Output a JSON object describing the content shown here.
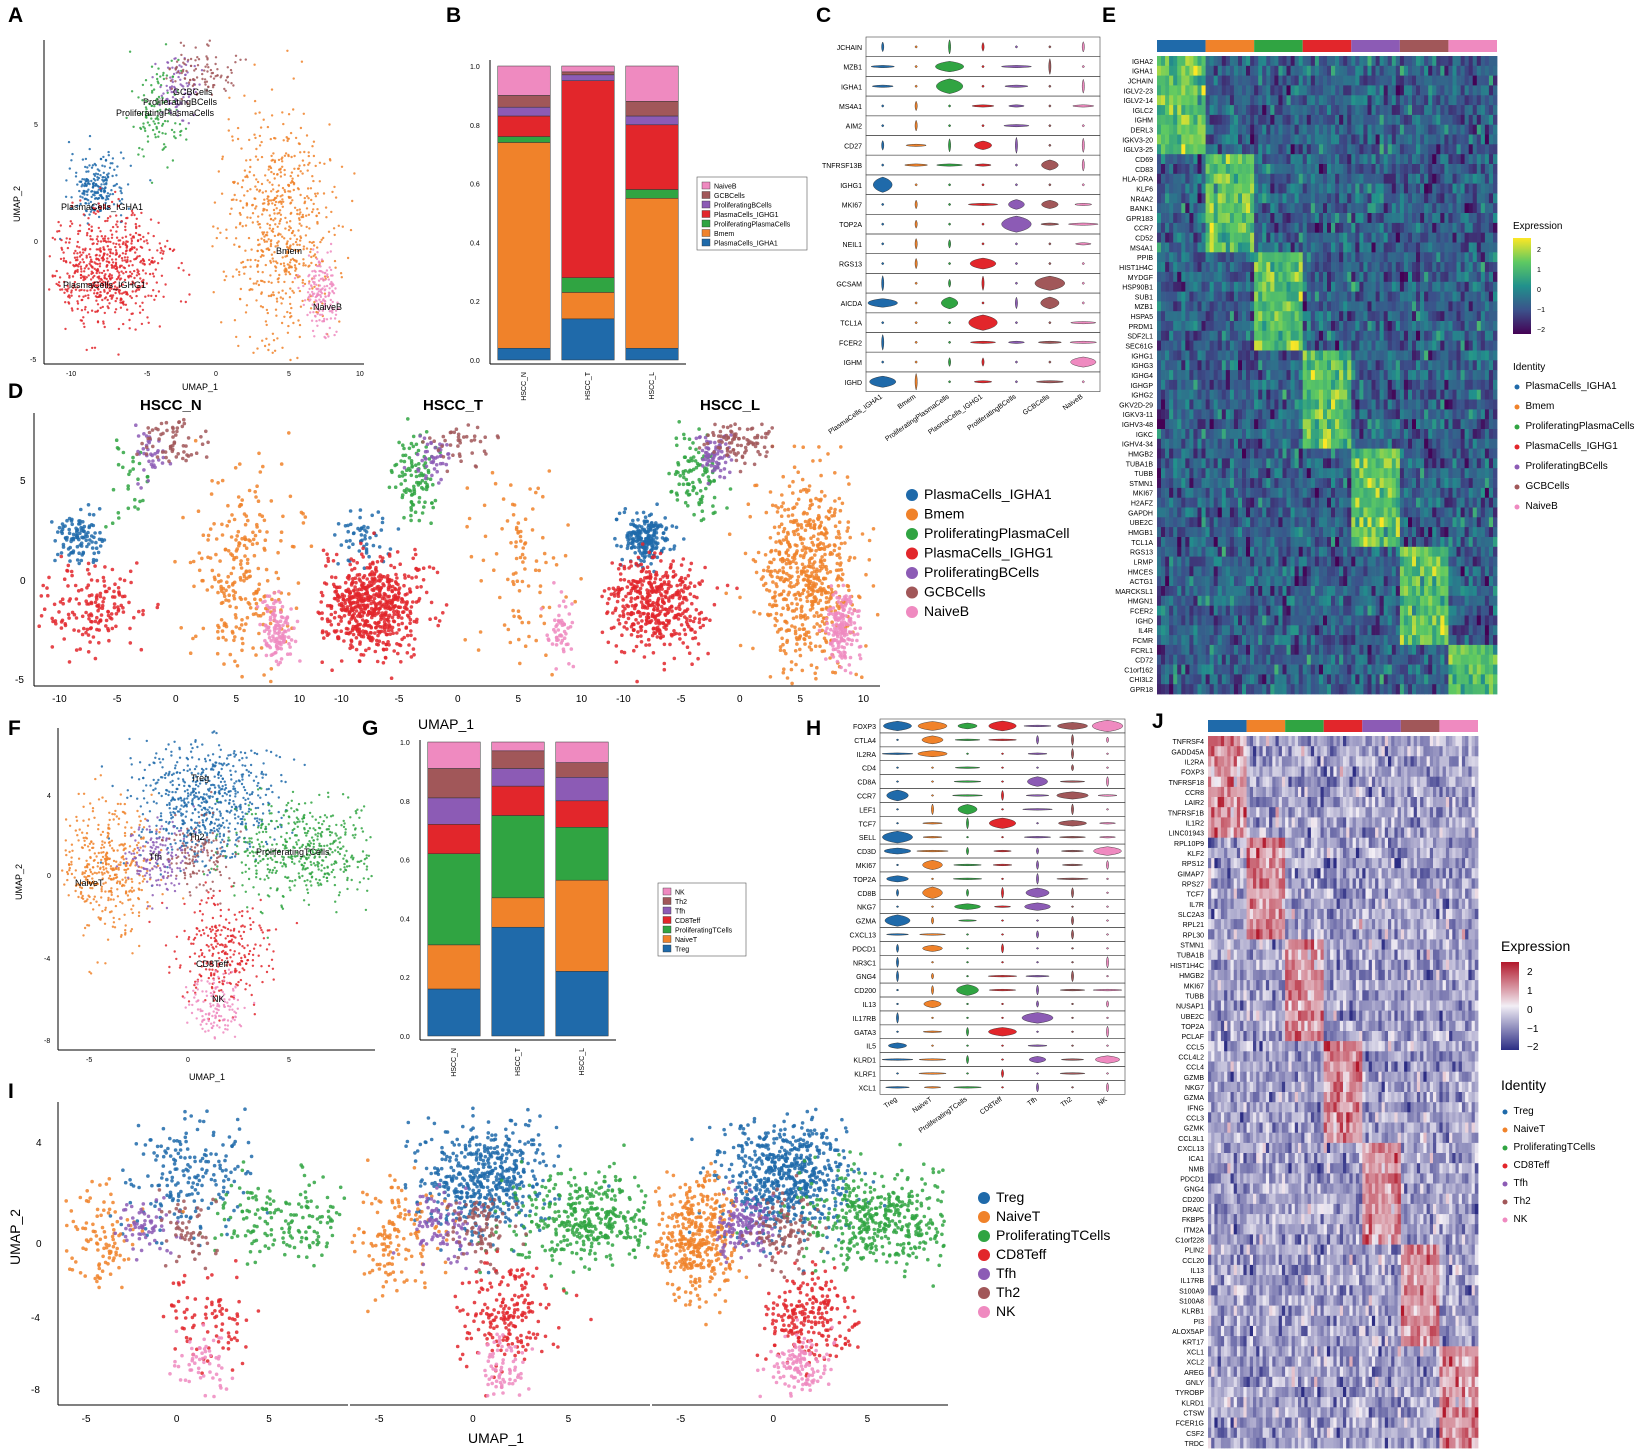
{
  "figure": {
    "labels": [
      "A",
      "B",
      "C",
      "D",
      "E",
      "F",
      "G",
      "H",
      "I",
      "J"
    ]
  },
  "colors": {
    "c1": "#1f6aaa",
    "c2": "#f0822a",
    "c3": "#30a442",
    "c4": "#e2262b",
    "c5": "#8c5bb5",
    "c6": "#a15759",
    "c7": "#ef8ac0"
  },
  "b_cells": {
    "clusters": [
      "PlasmaCells_IGHA1",
      "Bmem",
      "ProliferatingPlasmaCells",
      "PlasmaCells_IGHG1",
      "ProliferatingBCells",
      "GCBCells",
      "NaiveB"
    ],
    "umap_labels": [
      "GCBCells",
      "ProliferatingBCells",
      "ProliferatingPlasmaCells",
      "PlasmaCells_IGHA1",
      "PlasmaCells_IGHG1",
      "Bmem",
      "NaiveB"
    ],
    "umap_axes": {
      "xlabel": "UMAP_1",
      "ylabel": "UMAP_2",
      "xticks": [
        "-10",
        "-5",
        "0",
        "5",
        "10"
      ],
      "yticks": [
        "5",
        "0",
        "-5"
      ]
    },
    "legend_d": [
      "PlasmaCells_IGHA1",
      "Bmem",
      "ProliferatingPlasmaCell",
      "PlasmaCells_IGHG1",
      "ProliferatingBCells",
      "GCBCells",
      "NaiveB"
    ],
    "samples": [
      "HSCC_N",
      "HSCC_T",
      "HSCC_L"
    ],
    "legend_b": [
      "NaiveB",
      "GCBCells",
      "ProliferatingBCells",
      "PlasmaCells_IGHG1",
      "ProliferatingPlasmaCells",
      "Bmem",
      "PlasmaCells_IGHA1"
    ],
    "violin_genes": [
      "JCHAIN",
      "MZB1",
      "IGHA1",
      "MS4A1",
      "AIM2",
      "CD27",
      "TNFRSF13B",
      "IGHG1",
      "MKI67",
      "TOP2A",
      "NEIL1",
      "RGS13",
      "GCSAM",
      "AICDA",
      "TCL1A",
      "FCER2",
      "IGHM",
      "IGHD"
    ],
    "violin_xlabels": [
      "PlasmaCells_IGHA1",
      "Bmem",
      "ProliferatingPlasmaCells",
      "PlasmaCells_IGHG1",
      "ProliferatingBCells",
      "GCBCells",
      "NaiveB"
    ],
    "heatmap_genes": [
      "IGHA2",
      "IGHA1",
      "JCHAIN",
      "IGLV2-23",
      "IGLV2-14",
      "IGLC2",
      "IGHM",
      "DERL3",
      "IGKV3-20",
      "IGLV3-25",
      "CD69",
      "CD83",
      "HLA-DRA",
      "KLF6",
      "NR4A2",
      "BANK1",
      "GPR183",
      "CCR7",
      "CD52",
      "MS4A1",
      "PPIB",
      "HIST1H4C",
      "MYDGF",
      "HSP90B1",
      "SUB1",
      "MZB1",
      "HSPA5",
      "PRDM1",
      "SDF2L1",
      "SEC61G",
      "IGHG1",
      "IGHG3",
      "IGHG4",
      "IGHGP",
      "IGHG2",
      "GKV2D-29",
      "IGKV3-11",
      "IGHV3-48",
      "IGKC",
      "IGHV4-34",
      "HMGB2",
      "TUBA1B",
      "TUBB",
      "STMN1",
      "MKI67",
      "H2AFZ",
      "GAPDH",
      "UBE2C",
      "HMGB1",
      "TCL1A",
      "RGS13",
      "LRMP",
      "HMCES",
      "ACTG1",
      "MARCKSL1",
      "HMGN1",
      "FCER2",
      "IGHD",
      "IL4R",
      "FCMR",
      "FCRL1",
      "CD72",
      "C1orf162",
      "CHI3L2",
      "GPR18"
    ],
    "expr_title": "Expression",
    "expr_ticks": [
      "2",
      "1",
      "0",
      "−1",
      "−2"
    ],
    "identity_title": "Identity"
  },
  "t_cells": {
    "clusters": [
      "Treg",
      "NaiveT",
      "ProliferatingTCells",
      "CD8Teff",
      "Tfh",
      "Th2",
      "NK"
    ],
    "umap_labels": [
      "Treg",
      "Th2",
      "Tfh",
      "ProliferatingTCells",
      "NaiveT",
      "CD8Teff",
      "NK"
    ],
    "umap_axes": {
      "xlabel": "UMAP_1",
      "ylabel": "UMAP_2",
      "xticks": [
        "-5",
        "0",
        "5"
      ],
      "yticks": [
        "4",
        "0",
        "-4",
        "-8"
      ]
    },
    "legend_g": [
      "NK",
      "Th2",
      "Tfh",
      "CD8Teff",
      "ProliferatingTCells",
      "NaiveT",
      "Treg"
    ],
    "violin_genes": [
      "FOXP3",
      "CTLA4",
      "IL2RA",
      "CD4",
      "CD8A",
      "CCR7",
      "LEF1",
      "TCF7",
      "SELL",
      "CD3D",
      "MKI67",
      "TOP2A",
      "CD8B",
      "NKG7",
      "GZMA",
      "CXCL13",
      "PDCD1",
      "NR3C1",
      "GNG4",
      "CD200",
      "IL13",
      "IL17RB",
      "GATA3",
      "IL5",
      "KLRD1",
      "KLRF1",
      "XCL1"
    ],
    "violin_xlabels": [
      "Treg",
      "NaiveT",
      "ProliferatingTCells",
      "CD8Teff",
      "Tfh",
      "Th2",
      "NK"
    ],
    "heatmap_genes": [
      "TNFRSF4",
      "GADD45A",
      "IL2RA",
      "FOXP3",
      "TNFRSF18",
      "CCR8",
      "LAIR2",
      "TNFRSF1B",
      "IL1R2",
      "LINC01943",
      "RPL10P9",
      "KLF2",
      "RPS12",
      "GIMAP7",
      "RPS27",
      "TCF7",
      "IL7R",
      "SLC2A3",
      "RPL21",
      "RPL30",
      "STMN1",
      "TUBA1B",
      "HIST1H4C",
      "HMGB2",
      "MKI67",
      "TUBB",
      "NUSAP1",
      "UBE2C",
      "TOP2A",
      "PCLAF",
      "CCL5",
      "CCL4L2",
      "CCL4",
      "GZMB",
      "NKG7",
      "GZMA",
      "IFNG",
      "CCL3",
      "GZMK",
      "CCL3L1",
      "CXCL13",
      "ICA1",
      "NMB",
      "PDCD1",
      "GNG4",
      "CD200",
      "DRAIC",
      "FKBP5",
      "ITM2A",
      "C1orf228",
      "PLIN2",
      "CCL20",
      "IL13",
      "IL17RB",
      "S100A9",
      "S100A8",
      "KLRB1",
      "PI3",
      "ALOX5AP",
      "KRT17",
      "XCL1",
      "XCL2",
      "AREG",
      "GNLY",
      "TYROBP",
      "KLRD1",
      "CTSW",
      "FCER1G",
      "CSF2",
      "TRDC"
    ],
    "expr_title": "Expression",
    "expr_ticks": [
      "2",
      "1",
      "0",
      "−1",
      "−2"
    ],
    "identity_title": "Identity"
  },
  "chart_data": [
    {
      "panel": "A",
      "type": "scatter",
      "title": "",
      "xlabel": "UMAP_1",
      "ylabel": "UMAP_2",
      "xlim": [
        -12,
        11
      ],
      "ylim": [
        -5.2,
        7.5
      ],
      "clusters": [
        {
          "name": "PlasmaCells_IGHA1",
          "cx": -8.4,
          "cy": 1.7,
          "sx": 1.0,
          "sy": 0.6,
          "n": 220
        },
        {
          "name": "Bmem",
          "cx": 5.0,
          "cy": 0.0,
          "sx": 2.0,
          "sy": 2.3,
          "n": 650
        },
        {
          "name": "ProliferatingPlasmaCells",
          "cx": -4.0,
          "cy": 4.6,
          "sx": 1.0,
          "sy": 1.0,
          "n": 120
        },
        {
          "name": "PlasmaCells_IGHG1",
          "cx": -7.5,
          "cy": -1.5,
          "sx": 2.0,
          "sy": 1.1,
          "n": 650
        },
        {
          "name": "ProliferatingBCells",
          "cx": -2.5,
          "cy": 5.6,
          "sx": 0.7,
          "sy": 0.6,
          "n": 90
        },
        {
          "name": "GCBCells",
          "cx": -0.5,
          "cy": 6.2,
          "sx": 1.3,
          "sy": 0.5,
          "n": 100
        },
        {
          "name": "NaiveB",
          "cx": 8.0,
          "cy": -2.6,
          "sx": 0.6,
          "sy": 0.8,
          "n": 170
        }
      ]
    },
    {
      "panel": "B",
      "type": "bar",
      "stacked": true,
      "categories": [
        "HSCC_N",
        "HSCC_T",
        "HSCC_L"
      ],
      "ylim": [
        0,
        1
      ],
      "yticks": [
        "0.0",
        "0.2",
        "0.4",
        "0.6",
        "0.8",
        "1.0"
      ],
      "series": [
        {
          "name": "PlasmaCells_IGHA1",
          "values": [
            0.04,
            0.14,
            0.04
          ]
        },
        {
          "name": "Bmem",
          "values": [
            0.7,
            0.09,
            0.51
          ]
        },
        {
          "name": "ProliferatingPlasmaCells",
          "values": [
            0.02,
            0.05,
            0.03
          ]
        },
        {
          "name": "PlasmaCells_IGHG1",
          "values": [
            0.07,
            0.67,
            0.22
          ]
        },
        {
          "name": "ProliferatingBCells",
          "values": [
            0.03,
            0.02,
            0.03
          ]
        },
        {
          "name": "GCBCells",
          "values": [
            0.04,
            0.01,
            0.05
          ]
        },
        {
          "name": "NaiveB",
          "values": [
            0.1,
            0.02,
            0.12
          ]
        }
      ]
    },
    {
      "panel": "C",
      "type": "violin",
      "genes_ref": "b_cells.violin_genes",
      "groups_ref": "b_cells.violin_xlabels"
    },
    {
      "panel": "D",
      "type": "scatter",
      "title": "HSCC_N | HSCC_T | HSCC_L",
      "xlabel": "UMAP_1",
      "ylabel": "UMAP_2",
      "xticks": [
        "-10",
        "-5",
        "0",
        "5",
        "10"
      ],
      "yticks": [
        "5",
        "0",
        "-5"
      ]
    },
    {
      "panel": "E",
      "type": "heatmap",
      "genes_ref": "b_cells.heatmap_genes",
      "colorbar": [
        -2,
        2
      ]
    },
    {
      "panel": "F",
      "type": "scatter",
      "title": "",
      "xlabel": "UMAP_1",
      "ylabel": "UMAP_2",
      "xlim": [
        -6.5,
        9
      ],
      "ylim": [
        -8.2,
        7
      ],
      "clusters": [
        {
          "name": "Treg",
          "cx": 0.5,
          "cy": 3.4,
          "sx": 1.7,
          "sy": 1.5,
          "n": 650
        },
        {
          "name": "NaiveT",
          "cx": -4.2,
          "cy": 0.3,
          "sx": 1.1,
          "sy": 1.5,
          "n": 420
        },
        {
          "name": "ProliferatingTCells",
          "cx": 5.5,
          "cy": 1.2,
          "sx": 2.0,
          "sy": 1.2,
          "n": 500
        },
        {
          "name": "CD8Teff",
          "cx": 1.7,
          "cy": -3.7,
          "sx": 1.2,
          "sy": 1.2,
          "n": 280
        },
        {
          "name": "Tfh",
          "cx": -1.7,
          "cy": 0.9,
          "sx": 0.8,
          "sy": 0.8,
          "n": 160
        },
        {
          "name": "Th2",
          "cx": 0.3,
          "cy": 0.8,
          "sx": 0.8,
          "sy": 1.0,
          "n": 130
        },
        {
          "name": "NK",
          "cx": 1.3,
          "cy": -6.3,
          "sx": 0.7,
          "sy": 0.8,
          "n": 140
        }
      ]
    },
    {
      "panel": "G",
      "type": "bar",
      "stacked": true,
      "categories": [
        "HSCC_N",
        "HSCC_T",
        "HSCC_L"
      ],
      "ylim": [
        0,
        1
      ],
      "yticks": [
        "0.0",
        "0.2",
        "0.4",
        "0.6",
        "0.8",
        "1.0"
      ],
      "series": [
        {
          "name": "Treg",
          "values": [
            0.16,
            0.37,
            0.22
          ]
        },
        {
          "name": "NaiveT",
          "values": [
            0.15,
            0.1,
            0.31
          ]
        },
        {
          "name": "ProliferatingTCells",
          "values": [
            0.31,
            0.28,
            0.18
          ]
        },
        {
          "name": "CD8Teff",
          "values": [
            0.1,
            0.1,
            0.09
          ]
        },
        {
          "name": "Tfh",
          "values": [
            0.09,
            0.06,
            0.08
          ]
        },
        {
          "name": "Th2",
          "values": [
            0.1,
            0.06,
            0.05
          ]
        },
        {
          "name": "NK",
          "values": [
            0.09,
            0.03,
            0.07
          ]
        }
      ]
    },
    {
      "panel": "H",
      "type": "violin",
      "genes_ref": "t_cells.violin_genes",
      "groups_ref": "t_cells.violin_xlabels"
    },
    {
      "panel": "I",
      "type": "scatter",
      "title": "HSCC_N | HSCC_T | HSCC_L",
      "xlabel": "UMAP_1",
      "ylabel": "UMAP_2",
      "xticks": [
        "-5",
        "0",
        "5"
      ],
      "yticks": [
        "4",
        "0",
        "-4",
        "-8"
      ]
    },
    {
      "panel": "J",
      "type": "heatmap",
      "genes_ref": "t_cells.heatmap_genes",
      "colorbar": [
        -2,
        2
      ]
    }
  ]
}
